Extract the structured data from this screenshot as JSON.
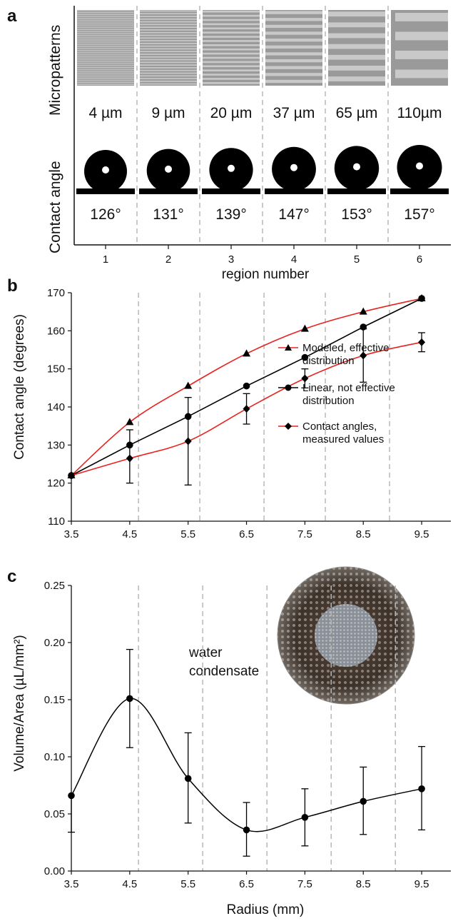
{
  "panel_a": {
    "letter": "a",
    "row_label_top": "Micropatterns",
    "row_label_bottom": "Contact angle",
    "regions": [
      {
        "number": "1",
        "width": "4 µm",
        "angle": "126°"
      },
      {
        "number": "2",
        "width": "9 µm",
        "angle": "131°"
      },
      {
        "number": "3",
        "width": "20 µm",
        "angle": "139°"
      },
      {
        "number": "4",
        "width": "37 µm",
        "angle": "147°"
      },
      {
        "number": "5",
        "width": "65 µm",
        "angle": "153°"
      },
      {
        "number": "6",
        "width": "110µm",
        "angle": "157°"
      }
    ],
    "xlabel": "region number",
    "micropattern_stripe_counts": [
      40,
      28,
      18,
      11,
      7,
      4
    ]
  },
  "panel_b_letter": "b",
  "panel_c_letter": "c",
  "panel_c_annotation": [
    "water",
    "condensate"
  ],
  "chart_data": [
    {
      "type": "line",
      "panel": "b",
      "xlabel": "",
      "ylabel": "Contact angle (degrees)",
      "xlim": [
        3.5,
        10
      ],
      "ylim": [
        110,
        170
      ],
      "x_ticks": [
        3.5,
        4.5,
        5.5,
        6.5,
        7.5,
        8.5,
        9.5
      ],
      "x_tick_labels": [
        "3.5",
        "4.5",
        "5.5",
        "6.5",
        "7.5",
        "8.5",
        "9.5"
      ],
      "y_ticks": [
        110,
        120,
        130,
        140,
        150,
        160,
        170
      ],
      "region_boundaries": [
        4.65,
        5.7,
        6.8,
        7.85,
        8.95
      ],
      "legend_position": "center-right",
      "series": [
        {
          "name": "Modeled, effective distribution",
          "legend_lines": [
            "Modeled, effective",
            "distribution"
          ],
          "color": "#e8231f",
          "marker": "triangle",
          "marker_color": "#000000",
          "x": [
            3.5,
            4.5,
            5.5,
            6.5,
            7.5,
            8.5,
            9.5
          ],
          "y": [
            122,
            136,
            145.5,
            154,
            160.5,
            165,
            168.5
          ]
        },
        {
          "name": "Linear, not effective distribution",
          "legend_lines": [
            "Linear, not effective",
            "distribution"
          ],
          "color": "#000000",
          "marker": "circle",
          "marker_color": "#000000",
          "x": [
            3.5,
            4.5,
            5.5,
            6.5,
            7.5,
            8.5,
            9.5
          ],
          "y": [
            122,
            130,
            137.5,
            145.5,
            153,
            161,
            168.5
          ]
        },
        {
          "name": "Contact angles, measured values",
          "legend_lines": [
            "Contact angles,",
            "measured values"
          ],
          "color": "#e8231f",
          "marker": "diamond",
          "marker_color": "#000000",
          "x": [
            3.5,
            4.5,
            5.5,
            6.5,
            7.5,
            8.5,
            9.5
          ],
          "y": [
            122,
            126.5,
            131,
            139.5,
            147.5,
            153.5,
            157
          ],
          "error": [
            0,
            7,
            11.5,
            4,
            2.5,
            7,
            2.5
          ],
          "error_center_x": [
            null,
            4.5,
            5.5,
            6.5,
            7.5,
            8.5,
            9.5
          ],
          "error_center_y": [
            null,
            127,
            131,
            139.5,
            147.5,
            153.5,
            157
          ]
        }
      ]
    },
    {
      "type": "line",
      "panel": "c",
      "xlabel": "Radius (mm)",
      "ylabel": "Volume/Area (µL/mm²)",
      "xlim": [
        3.5,
        10
      ],
      "ylim": [
        0,
        0.25
      ],
      "x_ticks": [
        3.5,
        4.5,
        5.5,
        6.5,
        7.5,
        8.5,
        9.5
      ],
      "x_tick_labels": [
        "3.5",
        "4.5",
        "5.5",
        "6.5",
        "7.5",
        "8.5",
        "9.5"
      ],
      "y_ticks": [
        0,
        0.05,
        0.1,
        0.15,
        0.2,
        0.25
      ],
      "y_tick_labels": [
        "0.00",
        "0.05",
        "0.10",
        "0.15",
        "0.20",
        "0.25"
      ],
      "region_boundaries": [
        4.65,
        5.75,
        6.85,
        7.95,
        9.05
      ],
      "series": [
        {
          "color": "#000000",
          "marker": "circle",
          "x": [
            3.5,
            4.5,
            5.5,
            6.5,
            7.5,
            8.5,
            9.5
          ],
          "y": [
            0.066,
            0.151,
            0.081,
            0.036,
            0.047,
            0.061,
            0.072
          ],
          "err_hi": [
            0,
            0.194,
            0.121,
            0.06,
            0.072,
            0.091,
            0.109
          ],
          "err_lo": [
            0.034,
            0.108,
            0.042,
            0.013,
            0.022,
            0.032,
            0.036
          ]
        }
      ]
    }
  ]
}
